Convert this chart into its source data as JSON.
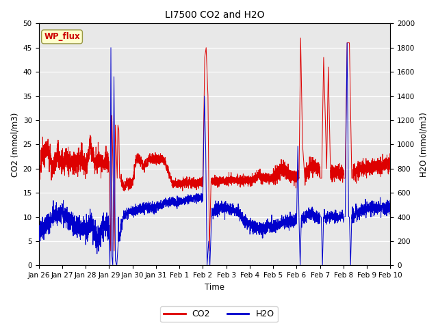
{
  "title": "LI7500 CO2 and H2O",
  "xlabel": "Time",
  "ylabel_left": "CO2 (mmol/m3)",
  "ylabel_right": "H2O (mmol/m3)",
  "annotation": "WP_flux",
  "ylim_left": [
    0,
    50
  ],
  "ylim_right": [
    0,
    2000
  ],
  "yticks_left": [
    0,
    5,
    10,
    15,
    20,
    25,
    30,
    35,
    40,
    45,
    50
  ],
  "yticks_right": [
    0,
    200,
    400,
    600,
    800,
    1000,
    1200,
    1400,
    1600,
    1800,
    2000
  ],
  "xtick_labels": [
    "Jan 26",
    "Jan 27",
    "Jan 28",
    "Jan 29",
    "Jan 30",
    "Jan 31",
    "Feb 1",
    "Feb 2",
    "Feb 3",
    "Feb 4",
    "Feb 5",
    "Feb 6",
    "Feb 7",
    "Feb 8",
    "Feb 9",
    "Feb 10"
  ],
  "co2_color": "#dd0000",
  "h2o_color": "#0000cc",
  "plot_bg_color": "#e8e8e8",
  "legend_co2": "CO2",
  "legend_h2o": "H2O",
  "n_points": 5000,
  "title_fontsize": 10,
  "tick_fontsize": 7.5,
  "label_fontsize": 8.5,
  "legend_fontsize": 9
}
